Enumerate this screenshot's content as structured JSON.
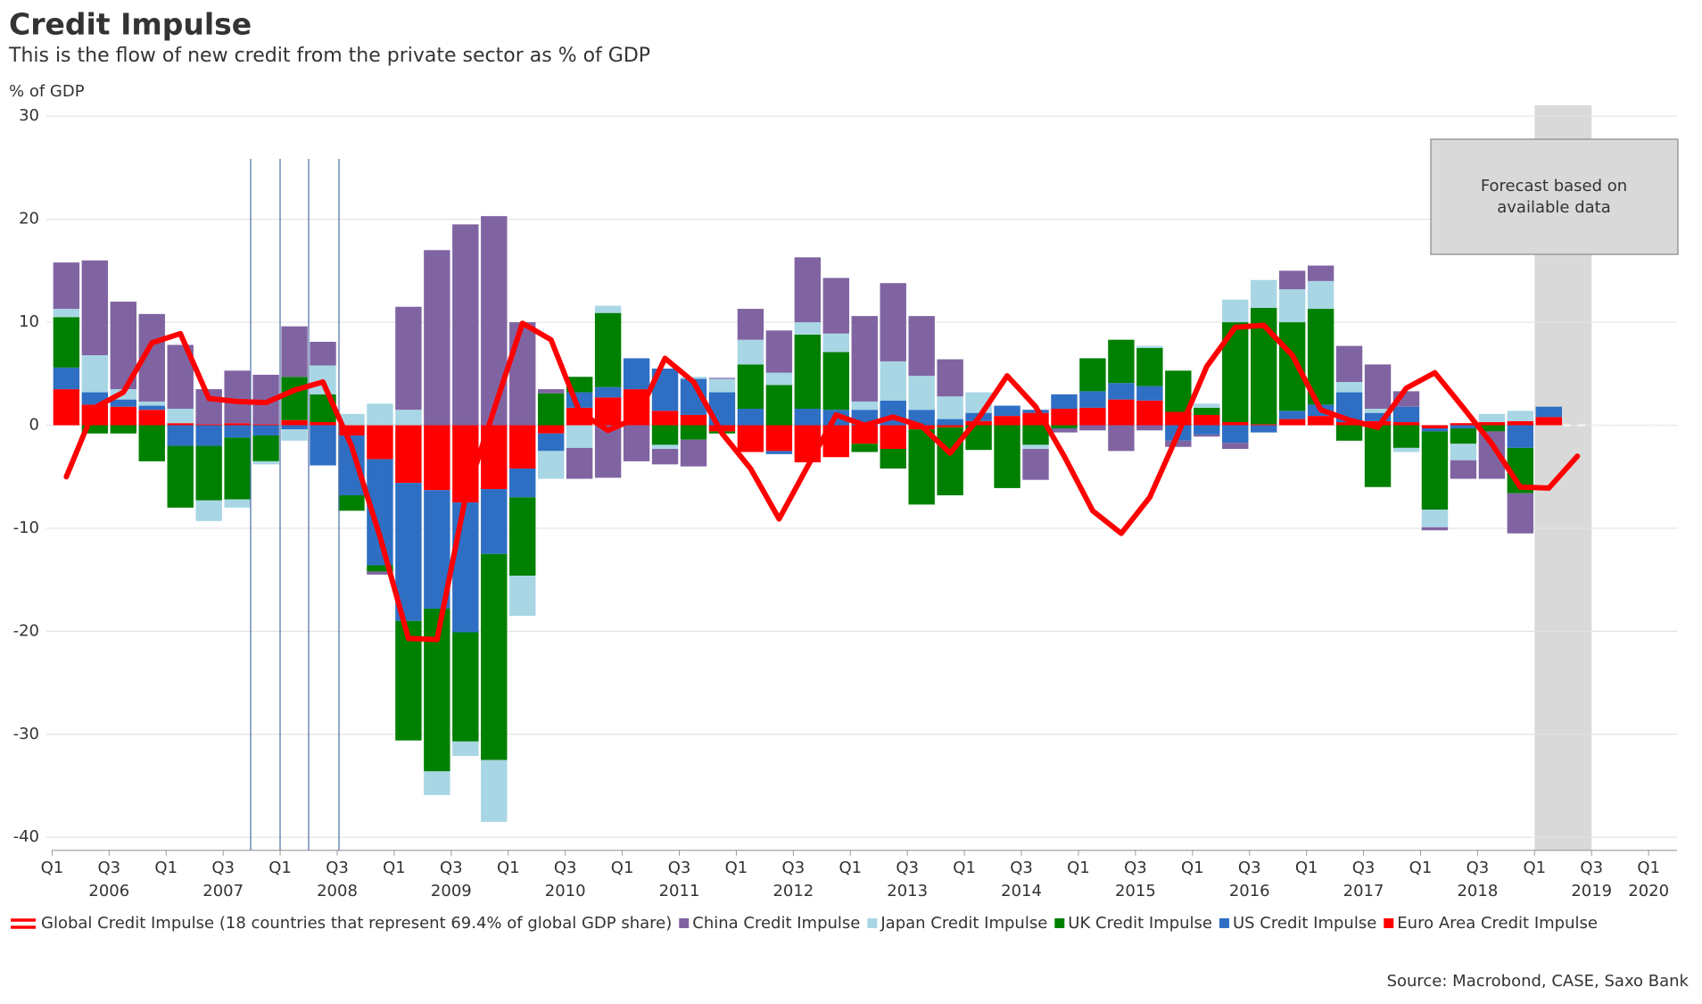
{
  "chart_data": {
    "type": "bar",
    "title": "Credit Impulse",
    "subtitle": "This is the flow of new credit from the private sector as % of GDP",
    "y_label": "% of GDP",
    "source": "Source: Macrobond, CASE, Saxo Bank",
    "annotation": [
      "Forecast based on",
      "available data"
    ],
    "ylim": [
      -40,
      30
    ],
    "yticks": [
      30,
      20,
      10,
      0,
      -10,
      -20,
      -30,
      -40
    ],
    "grid": true,
    "categories": [
      "Q1",
      null,
      "Q3",
      null,
      "Q1",
      null,
      "Q3",
      null,
      "Q1",
      null,
      "Q3",
      null,
      "Q1",
      null,
      "Q3",
      null,
      "Q1",
      null,
      "Q3",
      null,
      "Q1",
      null,
      "Q3",
      null,
      "Q1",
      null,
      "Q3",
      null,
      "Q1",
      null,
      "Q3",
      null,
      "Q1",
      null,
      "Q3",
      null,
      "Q1",
      null,
      "Q3",
      null,
      "Q1",
      null,
      "Q3",
      null,
      "Q1",
      null,
      "Q3",
      null,
      "Q1",
      null,
      "Q3",
      null,
      "Q1",
      null,
      "Q3",
      null,
      "Q1"
    ],
    "year_labels": [
      null,
      null,
      "2006",
      null,
      null,
      null,
      "2007",
      null,
      null,
      null,
      "2008",
      null,
      null,
      null,
      "2009",
      null,
      null,
      null,
      "2010",
      null,
      null,
      null,
      "2011",
      null,
      null,
      null,
      "2012",
      null,
      null,
      null,
      "2013",
      null,
      null,
      null,
      "2014",
      null,
      null,
      null,
      "2015",
      null,
      null,
      null,
      "2016",
      null,
      null,
      null,
      "2017",
      null,
      null,
      null,
      "2018",
      null,
      null,
      null,
      "2019",
      null,
      "2020"
    ],
    "series": [
      {
        "name": "Global Credit Impulse (18 countries that represent 69.4% of global GDP share)",
        "type": "line",
        "color": "#ff0000",
        "values": [
          -5,
          1.7,
          3.2,
          8,
          8.9,
          2.6,
          2.3,
          2.2,
          3.4,
          4.2,
          -2,
          -10.8,
          -20.7,
          -20.8,
          -7,
          1.5,
          9.9,
          8.3,
          1.3,
          -0.5,
          0.7,
          6.5,
          4.2,
          -0.8,
          -4.2,
          -9.1,
          -4,
          1,
          0,
          0.8,
          -0.1,
          -2.7,
          0.7,
          4.8,
          1.8,
          -3,
          -8.3,
          -10.5,
          -7,
          -0.8,
          5.7,
          9.5,
          9.7,
          6.8,
          1.5,
          0.5,
          -0.2,
          3.6,
          5.1,
          1.7,
          -1.8,
          -6,
          -6.1,
          -3,
          null,
          null,
          null
        ]
      },
      {
        "name": "China Credit Impulse",
        "type": "bar",
        "color": "#8064a2",
        "values": [
          4.5,
          9.2,
          8.5,
          8.5,
          6.2,
          3.4,
          5.1,
          4.8,
          4.9,
          2.3,
          0,
          -0.3,
          10,
          17,
          19.5,
          20.3,
          10,
          0.4,
          -3,
          -5.1,
          -3.5,
          -1.5,
          -2.6,
          0.1,
          3,
          4.1,
          6.3,
          5.4,
          8.3,
          7.6,
          5.8,
          3.6,
          0,
          0,
          -3,
          -0.4,
          -0.5,
          -2.5,
          -0.5,
          -0.6,
          -0.2,
          -0.6,
          0,
          1.8,
          1.5,
          3.5,
          4.3,
          1.5,
          -0.3,
          -1.8,
          -4.6,
          -3.9,
          0,
          null,
          null,
          null,
          null
        ]
      },
      {
        "name": "Japan Credit Impulse",
        "type": "bar",
        "color": "#a9d6e5",
        "values": [
          0.8,
          3.6,
          1,
          0.4,
          1.4,
          -2,
          -0.8,
          -0.3,
          -1.1,
          2.8,
          1.1,
          2.1,
          1.5,
          -2.3,
          -1.4,
          -6,
          -3.9,
          -2.7,
          -2.2,
          0.7,
          0,
          -0.4,
          0.2,
          1.3,
          2.4,
          1.2,
          1.2,
          1.8,
          0.8,
          3.8,
          3.3,
          2.2,
          2,
          0,
          -0.4,
          0,
          0,
          0,
          0.2,
          0,
          0.4,
          2.2,
          2.7,
          3.2,
          2.7,
          1,
          0.4,
          -0.4,
          -1.7,
          -1.6,
          0.8,
          1,
          0,
          null,
          null,
          null,
          null
        ]
      },
      {
        "name": "UK Credit Impulse",
        "type": "bar",
        "color": "#008000",
        "values": [
          4.9,
          -0.8,
          -0.8,
          -3.5,
          -6,
          -5.3,
          -6,
          -2.5,
          4.2,
          2.7,
          -1.5,
          -0.6,
          -11.6,
          -15.8,
          -10.6,
          -20,
          -7.6,
          3.1,
          1.5,
          7.2,
          0,
          -1.9,
          -1.4,
          -0.2,
          4.3,
          3.9,
          7.2,
          5.6,
          -0.8,
          -1.9,
          -7.3,
          -6.6,
          -2.4,
          -6.1,
          -1.9,
          -0.3,
          3.2,
          4.2,
          3.7,
          4,
          0.7,
          9.7,
          11.3,
          8.6,
          9.3,
          -1.5,
          -6,
          -2.2,
          -7.6,
          -1.5,
          -0.6,
          -4.4,
          0,
          null,
          null,
          null,
          null
        ]
      },
      {
        "name": "US Credit Impulse",
        "type": "bar",
        "color": "#2e6fc4",
        "values": [
          2.1,
          1.2,
          0.7,
          0.4,
          -2,
          -2,
          -1.2,
          -1,
          -0.4,
          -3.9,
          -5.8,
          -10.3,
          -13.4,
          -11.5,
          -12.6,
          -6.3,
          -2.8,
          -1.7,
          1.5,
          1,
          3,
          4.1,
          3.5,
          3.2,
          1.6,
          -0.3,
          1.6,
          1.5,
          1.5,
          2.4,
          1.5,
          0.6,
          0.8,
          1,
          0.3,
          1.4,
          1.6,
          1.6,
          1.4,
          -1.5,
          -0.9,
          -1.7,
          -0.7,
          0.8,
          1.1,
          2.9,
          0.8,
          1.5,
          -0.3,
          -0.3,
          0,
          -2.2,
          1,
          null,
          null,
          null,
          null
        ]
      },
      {
        "name": "Euro Area Credit Impulse",
        "type": "bar",
        "color": "#ff0000",
        "values": [
          3.5,
          2,
          1.8,
          1.5,
          0.2,
          0.1,
          0.2,
          0.1,
          0.5,
          0.3,
          -1,
          -3.3,
          -5.6,
          -6.3,
          -7.5,
          -6.2,
          -4.2,
          -0.8,
          1.7,
          2.7,
          3.5,
          1.4,
          1,
          -0.6,
          -2.6,
          -2.5,
          -3.6,
          -3.1,
          -1.8,
          -2.3,
          -0.4,
          -0.2,
          0.4,
          0.9,
          1.2,
          1.6,
          1.7,
          2.5,
          2.4,
          1.3,
          1,
          0.3,
          0.1,
          0.6,
          0.9,
          0.3,
          0.4,
          0.3,
          -0.3,
          0.2,
          0.3,
          0.4,
          0.8,
          null,
          null,
          null,
          null
        ]
      }
    ]
  }
}
